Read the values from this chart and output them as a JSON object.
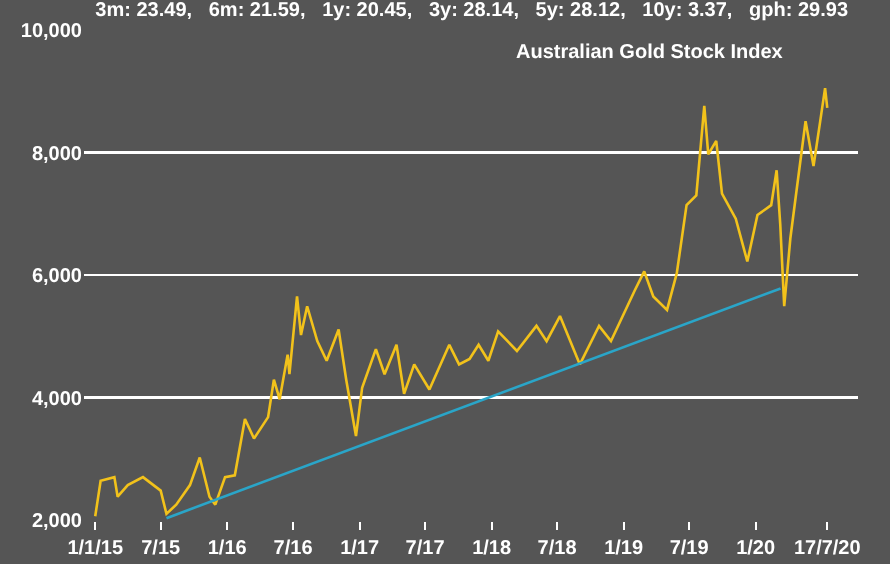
{
  "chart_data": {
    "type": "line",
    "title": "3m: 23.49,   6m: 21.59,   1y: 20.45,   3y: 28.14,   5y: 28.12,   10y: 3.37,   gph: 29.93",
    "subtitle": "Australian Gold Stock Index",
    "x": [
      "2015-01-01",
      "2015-01-16",
      "2015-02-23",
      "2015-03-04",
      "2015-04-01",
      "2015-05-13",
      "2015-07-01",
      "2015-07-17",
      "2015-08-13",
      "2015-09-20",
      "2015-10-17",
      "2015-11-13",
      "2015-11-29",
      "2015-12-26",
      "2016-01-22",
      "2016-02-19",
      "2016-03-15",
      "2016-04-23",
      "2016-05-09",
      "2016-05-25",
      "2016-06-16",
      "2016-06-21",
      "2016-07-12",
      "2016-07-23",
      "2016-08-09",
      "2016-09-06",
      "2016-10-02",
      "2016-11-04",
      "2016-11-25",
      "2016-12-22",
      "2017-01-08",
      "2017-02-15",
      "2017-03-11",
      "2017-04-13",
      "2017-05-04",
      "2017-06-01",
      "2017-07-13",
      "2017-09-06",
      "2017-10-03",
      "2017-11-01",
      "2017-11-26",
      "2017-12-23",
      "2018-01-19",
      "2018-03-12",
      "2018-05-05",
      "2018-06-02",
      "2018-07-09",
      "2018-09-02",
      "2018-10-25",
      "2018-11-27",
      "2019-02-01",
      "2019-02-27",
      "2019-03-24",
      "2019-05-01",
      "2019-05-28",
      "2019-06-24",
      "2019-07-21",
      "2019-08-12",
      "2019-08-23",
      "2019-09-14",
      "2019-09-30",
      "2019-11-07",
      "2019-12-09",
      "2020-01-06",
      "2020-02-13",
      "2020-02-28",
      "2020-03-09",
      "2020-03-20",
      "2020-04-06",
      "2020-04-22",
      "2020-05-18",
      "2020-06-09",
      "2020-06-25",
      "2020-07-11",
      "2020-07-17"
    ],
    "series": [
      {
        "color": "#f2c21b",
        "values": [
          2060,
          2640,
          2700,
          2380,
          2570,
          2700,
          2480,
          2100,
          2250,
          2570,
          3020,
          2380,
          2250,
          2700,
          2730,
          3650,
          3330,
          3680,
          4290,
          3970,
          4700,
          4380,
          5650,
          5020,
          5490,
          4920,
          4600,
          5110,
          4290,
          3370,
          4160,
          4790,
          4380,
          4860,
          4060,
          4540,
          4130,
          4860,
          4540,
          4630,
          4860,
          4600,
          5080,
          4760,
          5170,
          4920,
          5330,
          4540,
          5170,
          4920,
          5750,
          6060,
          5650,
          5430,
          6030,
          7140,
          7300,
          8760,
          7970,
          8190,
          7330,
          6920,
          6220,
          6980,
          7140,
          7710,
          6830,
          5490,
          6600,
          7330,
          8510,
          7780,
          8410,
          9050,
          8730
        ]
      },
      {
        "type": "line",
        "color": "#2aa5c8",
        "x": [
          "2015-07-17",
          "2020-03-10"
        ],
        "values": [
          2030,
          5780
        ]
      }
    ],
    "xlim": [
      "2014-12-01",
      "2020-10-10"
    ],
    "xticks": [
      {
        "value": "2015-01-01",
        "label": "1/1/15"
      },
      {
        "value": "2015-07-01",
        "label": "7/15"
      },
      {
        "value": "2016-01-01",
        "label": "1/16"
      },
      {
        "value": "2016-07-01",
        "label": "7/16"
      },
      {
        "value": "2017-01-01",
        "label": "1/17"
      },
      {
        "value": "2017-07-01",
        "label": "7/17"
      },
      {
        "value": "2018-01-01",
        "label": "1/18"
      },
      {
        "value": "2018-07-01",
        "label": "7/18"
      },
      {
        "value": "2019-01-01",
        "label": "1/19"
      },
      {
        "value": "2019-07-01",
        "label": "7/19"
      },
      {
        "value": "2020-01-01",
        "label": "1/20"
      },
      {
        "value": "2020-07-17",
        "label": "17/7/20"
      }
    ],
    "ylim": [
      2000,
      10000
    ],
    "yticks": [
      {
        "value": 2000,
        "label": "2,000"
      },
      {
        "value": 4000,
        "label": "4,000"
      },
      {
        "value": 6000,
        "label": "6,000"
      },
      {
        "value": 8000,
        "label": "8,000"
      },
      {
        "value": 10000,
        "label": "10,000"
      }
    ],
    "grid": "y"
  }
}
